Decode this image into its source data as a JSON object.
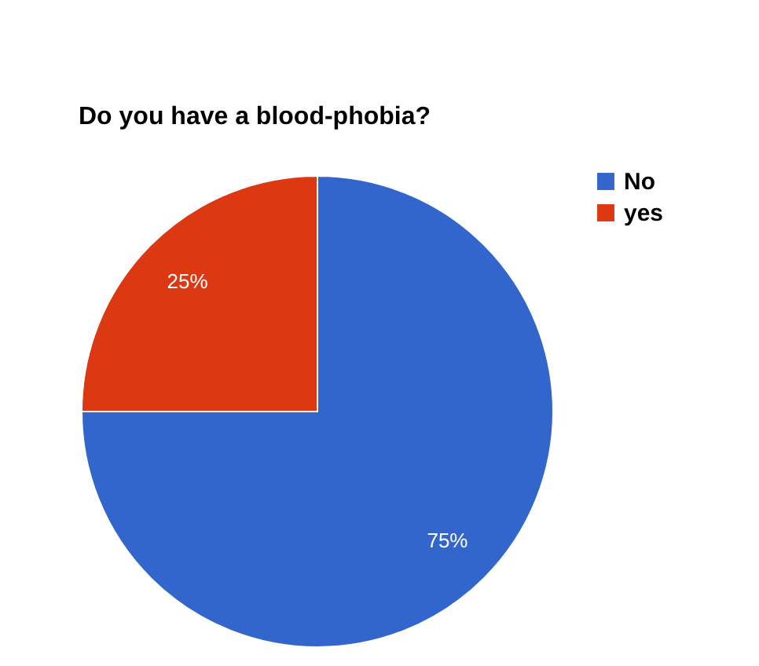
{
  "chart_data": {
    "type": "pie",
    "title": "Do you have a blood-phobia?",
    "categories": [
      "No",
      "yes"
    ],
    "values": [
      75,
      25
    ],
    "colors": [
      "#3366cc",
      "#dc3912"
    ],
    "value_labels": [
      "75%",
      "25%"
    ],
    "legend": "right"
  }
}
